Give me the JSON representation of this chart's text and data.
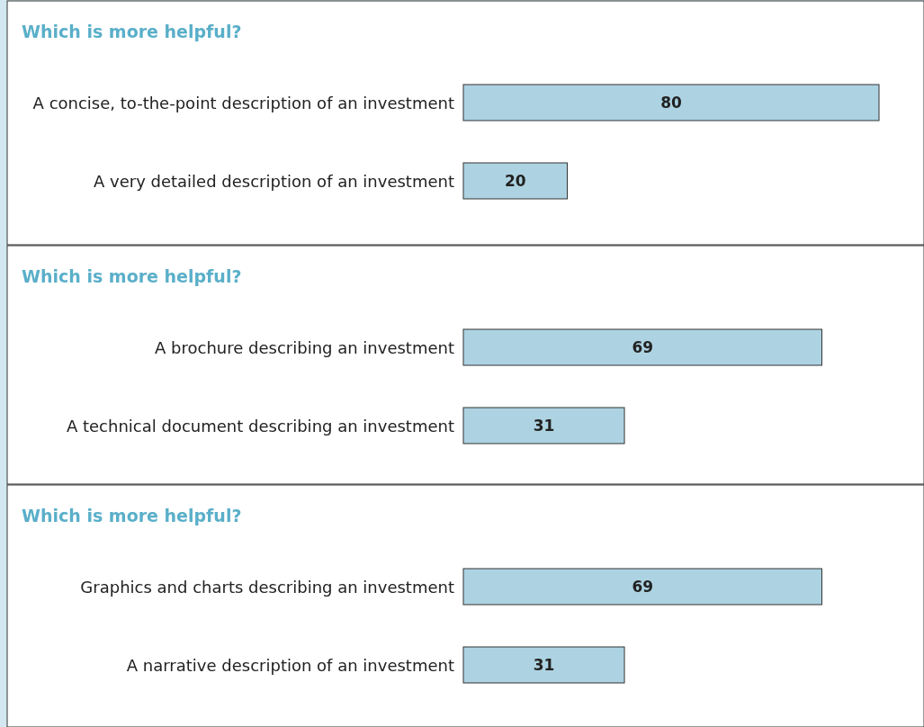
{
  "chart_data": [
    {
      "type": "bar",
      "title": "Which is more helpful?",
      "orientation": "horizontal",
      "categories": [
        "A concise, to-the-point description of an investment",
        "A very detailed description of an investment"
      ],
      "values": [
        80,
        20
      ],
      "color": "#add3e2",
      "data_labels": true
    },
    {
      "type": "bar",
      "title": "Which is more helpful?",
      "orientation": "horizontal",
      "categories": [
        "A brochure describing an investment",
        "A technical document describing an investment"
      ],
      "values": [
        69,
        31
      ],
      "color": "#add3e2",
      "data_labels": true
    },
    {
      "type": "bar",
      "title": "Which is more helpful?",
      "orientation": "horizontal",
      "categories": [
        "Graphics and charts describing an investment",
        "A narrative description of an investment"
      ],
      "values": [
        69,
        31
      ],
      "color": "#add3e2",
      "data_labels": true
    }
  ]
}
